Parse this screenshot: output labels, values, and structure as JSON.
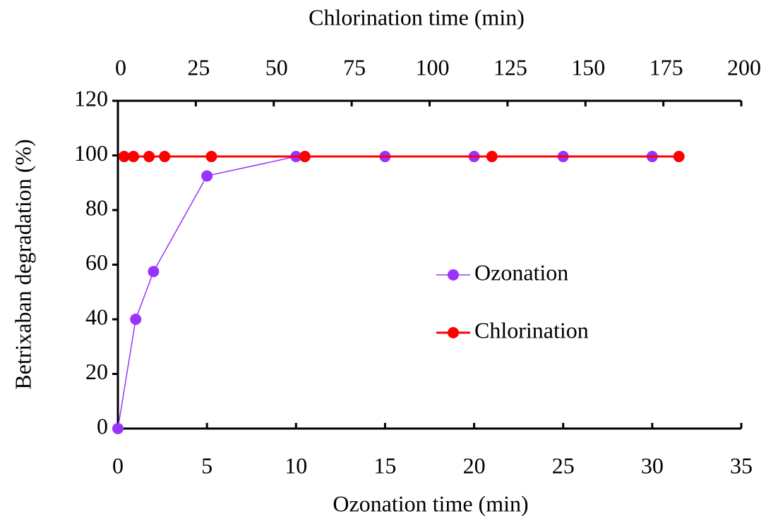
{
  "chart_data": {
    "type": "line",
    "xlabel": "Ozonation time (min)",
    "x2label": "Chlorination time (min)",
    "ylabel": "Betrixaban degradation (%)",
    "xlim": [
      0,
      35
    ],
    "xticks": [
      0,
      5,
      10,
      15,
      20,
      25,
      30,
      35
    ],
    "x2lim": [
      0,
      200
    ],
    "x2ticks": [
      0,
      25,
      50,
      75,
      100,
      125,
      150,
      175,
      200
    ],
    "ylim": [
      0,
      120
    ],
    "yticks": [
      0,
      20,
      40,
      60,
      80,
      100,
      120
    ],
    "legend": "right",
    "series": [
      {
        "name": "Ozonation",
        "color": "#9933ff",
        "x": [
          0,
          1,
          2,
          5,
          10,
          15,
          20,
          25,
          30
        ],
        "values": [
          0,
          40,
          57.5,
          92.5,
          99.6,
          99.6,
          99.6,
          99.6,
          99.6
        ]
      },
      {
        "name": "Chlorination",
        "color": "#ff0000",
        "axis": "x2",
        "x": [
          2,
          5,
          10,
          15,
          30,
          60,
          120,
          180
        ],
        "values": [
          99.6,
          99.6,
          99.6,
          99.6,
          99.6,
          99.6,
          99.6,
          99.6
        ]
      }
    ]
  }
}
